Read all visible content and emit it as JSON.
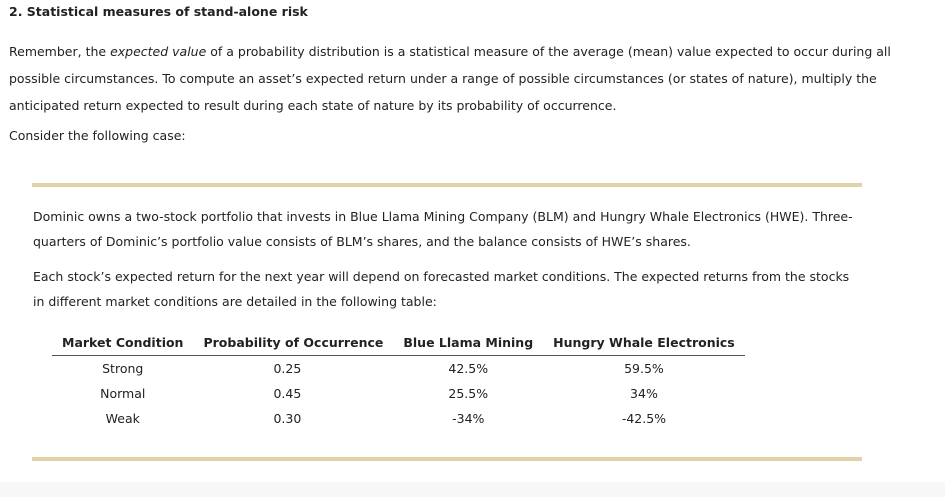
{
  "section": {
    "title": "2. Statistical measures of stand-alone risk"
  },
  "intro": {
    "before_em": "Remember, the ",
    "em": "expected value",
    "after_em": " of a probability distribution is a statistical measure of the average (mean) value expected to occur during all possible circumstances. To compute an asset’s expected return under a range of possible circumstances (or states of nature), multiply the anticipated return expected to result during each state of nature by its probability of occurrence."
  },
  "consider": "Consider the following case:",
  "case": {
    "paragraph1": "Dominic owns a two-stock portfolio that invests in Blue Llama Mining Company (BLM) and Hungry Whale Electronics (HWE). Three-quarters of Dominic’s portfolio value consists of BLM’s shares, and the balance consists of HWE’s shares.",
    "paragraph2": "Each stock’s expected return for the next year will depend on forecasted market conditions. The expected returns from the stocks in different market conditions are detailed in the following table:"
  },
  "table": {
    "headers": [
      "Market Condition",
      "Probability of Occurrence",
      "Blue Llama Mining",
      "Hungry Whale Electronics"
    ],
    "rows": [
      [
        "Strong",
        "0.25",
        "42.5%",
        "59.5%"
      ],
      [
        "Normal",
        "0.45",
        "25.5%",
        "34%"
      ],
      [
        "Weak",
        "0.30",
        "-34%",
        "-42.5%"
      ]
    ]
  }
}
